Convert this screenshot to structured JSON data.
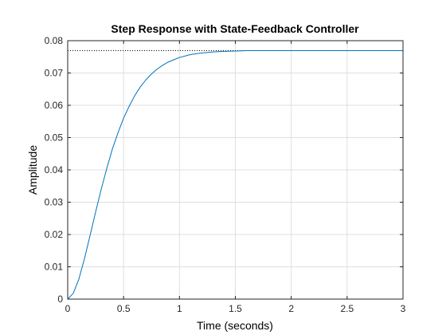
{
  "chart_data": {
    "type": "line",
    "title": "Step Response with State-Feedback Controller",
    "xlabel": "Time (seconds)",
    "ylabel": "Amplitude",
    "xlim": [
      0,
      3
    ],
    "ylim": [
      0,
      0.08
    ],
    "xticks": [
      0,
      0.5,
      1,
      1.5,
      2,
      2.5,
      3
    ],
    "xtick_labels": [
      "0",
      "0.5",
      "1",
      "1.5",
      "2",
      "2.5",
      "3"
    ],
    "yticks": [
      0,
      0.01,
      0.02,
      0.03,
      0.04,
      0.05,
      0.06,
      0.07,
      0.08
    ],
    "ytick_labels": [
      "0",
      "0.01",
      "0.02",
      "0.03",
      "0.04",
      "0.05",
      "0.06",
      "0.07",
      "0.08"
    ],
    "grid": true,
    "steady_state": 0.0769,
    "series": [
      {
        "color": "#0072BD",
        "x": [
          0,
          0.05,
          0.1,
          0.15,
          0.2,
          0.25,
          0.3,
          0.35,
          0.4,
          0.45,
          0.5,
          0.55,
          0.6,
          0.65,
          0.7,
          0.75,
          0.8,
          0.85,
          0.9,
          0.95,
          1.0,
          1.1,
          1.2,
          1.3,
          1.4,
          1.5,
          1.6,
          1.8,
          2.0,
          2.5,
          3.0
        ],
        "y": [
          0,
          0.0018,
          0.0062,
          0.0125,
          0.0197,
          0.027,
          0.034,
          0.0405,
          0.0465,
          0.0515,
          0.056,
          0.0597,
          0.063,
          0.0657,
          0.0679,
          0.0697,
          0.0712,
          0.0724,
          0.0734,
          0.0741,
          0.0748,
          0.0757,
          0.0762,
          0.0765,
          0.0767,
          0.0768,
          0.0769,
          0.0769,
          0.0769,
          0.0769,
          0.0769
        ]
      }
    ],
    "reference_line": {
      "style": "dotted",
      "color": "#000000",
      "x_end": 1.6
    }
  }
}
